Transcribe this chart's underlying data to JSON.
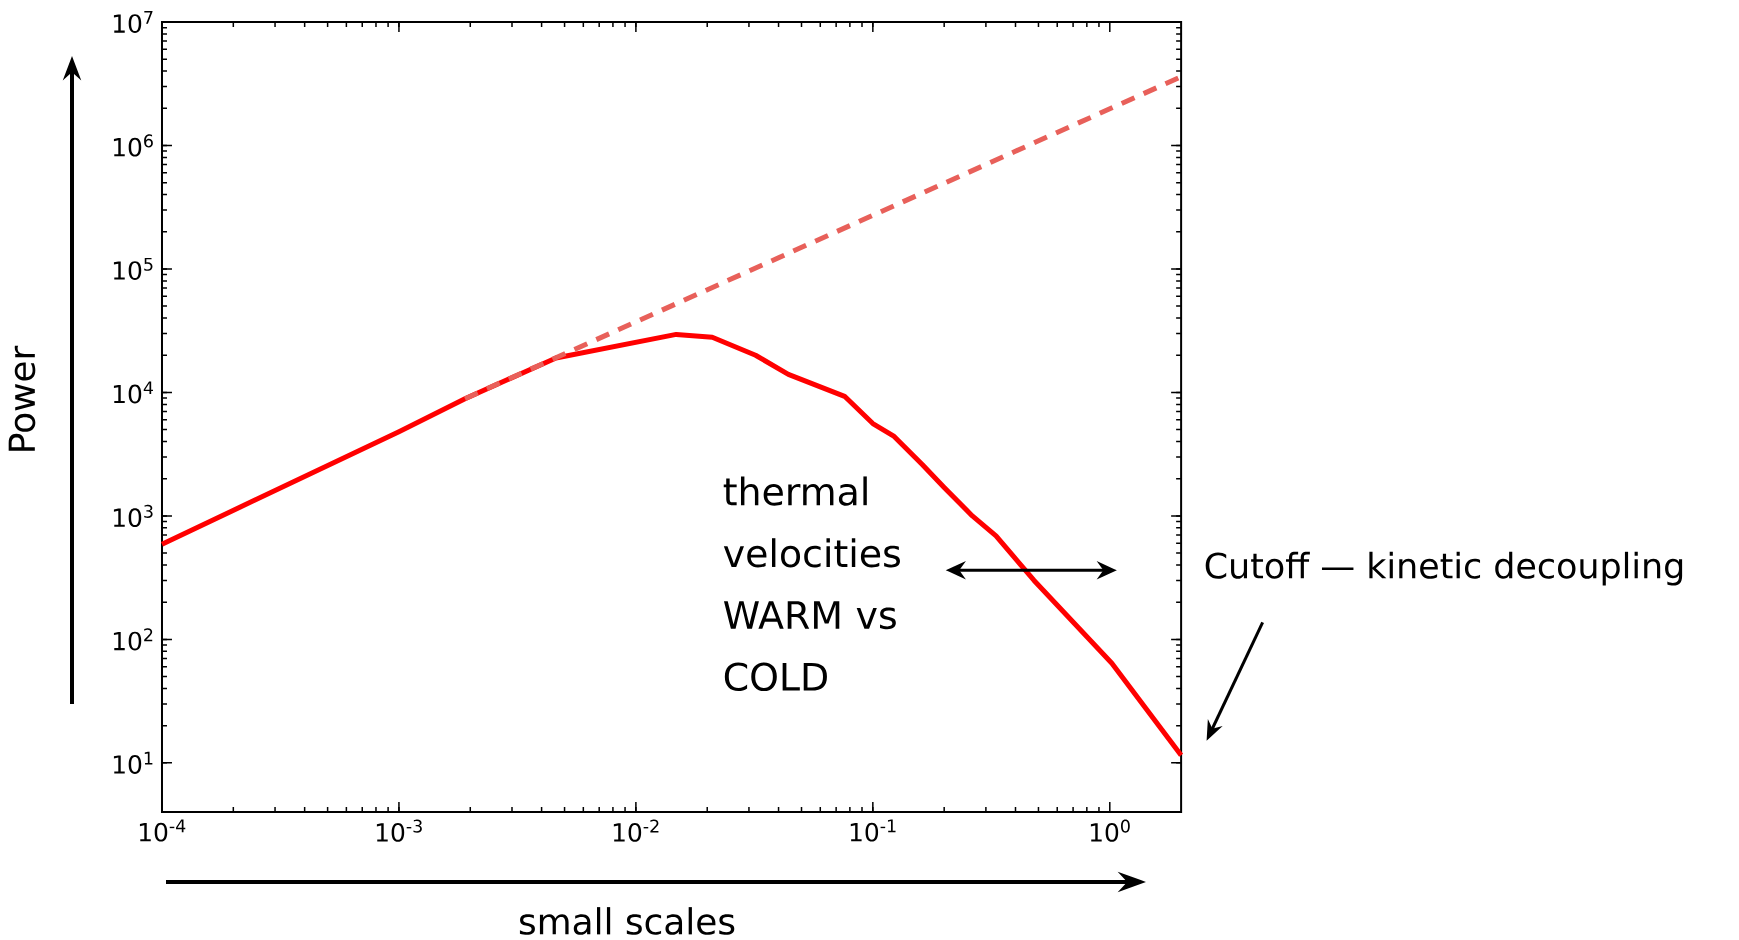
{
  "chart_data": {
    "type": "line",
    "xlabel": "small scales",
    "ylabel": "Power",
    "log": "xy",
    "grid": false,
    "marker": "none",
    "xlim": [
      0.0001,
      2
    ],
    "ylim": [
      4,
      10000000
    ],
    "xticks": [
      {
        "value": 0.0001,
        "label": "10$^{-4}$"
      },
      {
        "value": 0.001,
        "label": "10$^{-3}$"
      },
      {
        "value": 0.01,
        "label": "10$^{-2}$"
      },
      {
        "value": 0.1,
        "label": "10$^{-1}$"
      },
      {
        "value": 1,
        "label": "10$^{0}$"
      }
    ],
    "yticks": [
      {
        "value": 10,
        "label": "10$^{1}$"
      },
      {
        "value": 100,
        "label": "10$^{2}$"
      },
      {
        "value": 1000,
        "label": "10$^{3}$"
      },
      {
        "value": 10000,
        "label": "10$^{4}$"
      },
      {
        "value": 100000,
        "label": "10$^{5}$"
      },
      {
        "value": 1000000,
        "label": "10$^{6}$"
      },
      {
        "value": 10000000,
        "label": "10$^{7}$"
      }
    ],
    "series": [
      {
        "color": "#ff0000",
        "line_style": "solid",
        "x": [
          0.0001,
          0.001,
          0.0019,
          0.0046,
          0.0148,
          0.021,
          0.032,
          0.044,
          0.076,
          0.1,
          0.123,
          0.162,
          0.2,
          0.263,
          0.331,
          0.479,
          1.02,
          2
        ],
        "values": [
          590,
          4800,
          8900,
          19000,
          29500,
          28000,
          20000,
          14000,
          9300,
          5600,
          4400,
          2600,
          1700,
          1000,
          690,
          300,
          64,
          11.5
        ]
      },
      {
        "color": "#e8605a",
        "line_style": "dashed",
        "x": [
          0.0019,
          2
        ],
        "values": [
          8900,
          3600000
        ]
      }
    ],
    "annotations": [
      "thermal velocities WARM vs COLD",
      "Cutoff — kinetic decoupling"
    ]
  }
}
